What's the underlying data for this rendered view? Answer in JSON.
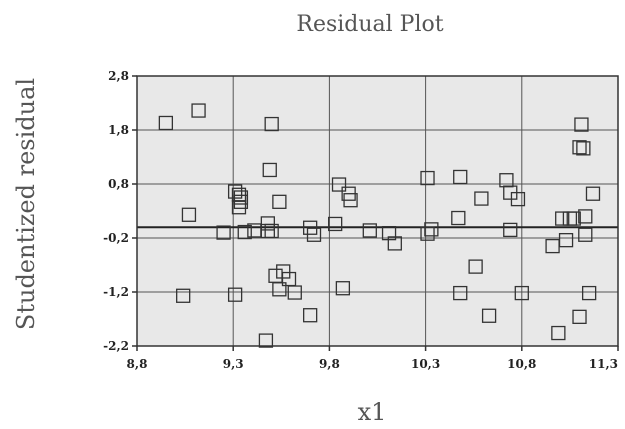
{
  "chart_data": {
    "type": "scatter",
    "title": "Residual Plot",
    "xlabel": "x1",
    "ylabel": "Studentized residual",
    "xlim": [
      8.8,
      11.3
    ],
    "ylim": [
      -2.2,
      2.8
    ],
    "x_ticks": [
      "8,8",
      "9,3",
      "9,8",
      "10,3",
      "10,8",
      "11,3"
    ],
    "y_ticks": [
      "2,8",
      "1,8",
      "0,8",
      "-0,2",
      "-1,2",
      "-2,2"
    ],
    "x_tick_values": [
      8.8,
      9.3,
      9.8,
      10.3,
      10.8,
      11.3
    ],
    "y_tick_values": [
      2.8,
      1.8,
      0.8,
      -0.2,
      -1.2,
      -2.2
    ],
    "grid": true,
    "reference_line_y": 0,
    "points": [
      {
        "x": 8.95,
        "y": 1.93
      },
      {
        "x": 9.12,
        "y": 2.16
      },
      {
        "x": 9.5,
        "y": 1.91
      },
      {
        "x": 9.49,
        "y": 1.06
      },
      {
        "x": 9.07,
        "y": 0.23
      },
      {
        "x": 9.31,
        "y": 0.66
      },
      {
        "x": 9.33,
        "y": 0.6
      },
      {
        "x": 9.34,
        "y": 0.55
      },
      {
        "x": 9.34,
        "y": 0.47
      },
      {
        "x": 9.33,
        "y": 0.37
      },
      {
        "x": 9.25,
        "y": -0.1
      },
      {
        "x": 9.36,
        "y": -0.09
      },
      {
        "x": 9.41,
        "y": -0.06
      },
      {
        "x": 9.48,
        "y": 0.07
      },
      {
        "x": 9.48,
        "y": -0.07
      },
      {
        "x": 9.5,
        "y": -0.07
      },
      {
        "x": 9.54,
        "y": 0.47
      },
      {
        "x": 9.7,
        "y": -0.01
      },
      {
        "x": 9.72,
        "y": -0.14
      },
      {
        "x": 9.83,
        "y": 0.06
      },
      {
        "x": 9.85,
        "y": 0.79
      },
      {
        "x": 9.9,
        "y": 0.62
      },
      {
        "x": 9.91,
        "y": 0.5
      },
      {
        "x": 10.01,
        "y": -0.06
      },
      {
        "x": 10.11,
        "y": -0.11
      },
      {
        "x": 10.14,
        "y": -0.3
      },
      {
        "x": 10.31,
        "y": 0.91
      },
      {
        "x": 10.31,
        "y": -0.12
      },
      {
        "x": 10.33,
        "y": -0.04
      },
      {
        "x": 10.48,
        "y": 0.93
      },
      {
        "x": 10.47,
        "y": 0.17
      },
      {
        "x": 10.59,
        "y": 0.53
      },
      {
        "x": 10.72,
        "y": 0.87
      },
      {
        "x": 10.74,
        "y": 0.64
      },
      {
        "x": 10.78,
        "y": 0.52
      },
      {
        "x": 10.74,
        "y": -0.05
      },
      {
        "x": 11.11,
        "y": 1.9
      },
      {
        "x": 11.1,
        "y": 1.48
      },
      {
        "x": 11.12,
        "y": 1.46
      },
      {
        "x": 11.17,
        "y": 0.62
      },
      {
        "x": 11.01,
        "y": 0.16
      },
      {
        "x": 11.05,
        "y": 0.16
      },
      {
        "x": 11.07,
        "y": 0.16
      },
      {
        "x": 11.13,
        "y": 0.2
      },
      {
        "x": 11.13,
        "y": -0.14
      },
      {
        "x": 11.03,
        "y": -0.24
      },
      {
        "x": 10.96,
        "y": -0.35
      },
      {
        "x": 10.56,
        "y": -0.73
      },
      {
        "x": 10.48,
        "y": -1.22
      },
      {
        "x": 10.8,
        "y": -1.22
      },
      {
        "x": 10.63,
        "y": -1.64
      },
      {
        "x": 11.15,
        "y": -1.22
      },
      {
        "x": 11.1,
        "y": -1.66
      },
      {
        "x": 10.99,
        "y": -1.96
      },
      {
        "x": 9.04,
        "y": -1.27
      },
      {
        "x": 9.31,
        "y": -1.25
      },
      {
        "x": 9.52,
        "y": -0.9
      },
      {
        "x": 9.54,
        "y": -1.15
      },
      {
        "x": 9.56,
        "y": -0.82
      },
      {
        "x": 9.59,
        "y": -0.96
      },
      {
        "x": 9.62,
        "y": -1.21
      },
      {
        "x": 9.87,
        "y": -1.13
      },
      {
        "x": 9.7,
        "y": -1.63
      },
      {
        "x": 9.47,
        "y": -2.1
      }
    ]
  }
}
